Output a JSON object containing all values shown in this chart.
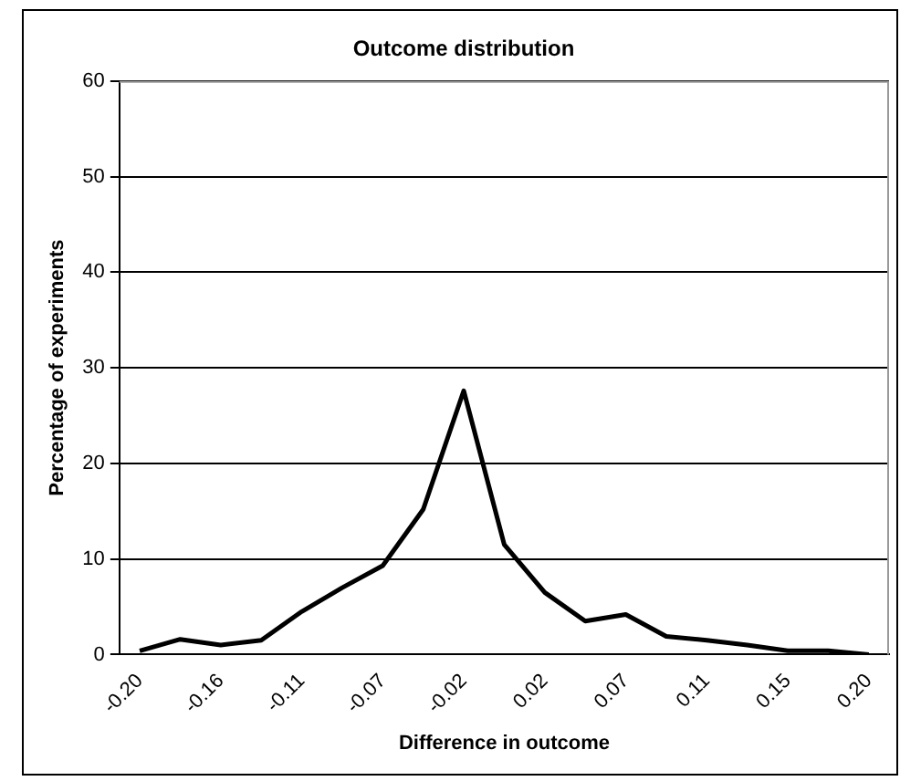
{
  "chart_data": {
    "type": "line",
    "title": "Outcome distribution",
    "xlabel": "Difference in outcome",
    "ylabel": "Percentage of experiments",
    "categories": [
      "-0.20",
      null,
      "-0.16",
      null,
      "-0.11",
      null,
      "-0.07",
      null,
      "-0.02",
      null,
      "0.02",
      null,
      "0.07",
      null,
      "0.11",
      null,
      "0.15",
      null,
      "0.20"
    ],
    "series": [
      {
        "color": "#000000",
        "values": [
          0.4,
          1.6,
          1.0,
          1.5,
          4.5,
          7.0,
          9.3,
          15.2,
          27.6,
          11.5,
          6.5,
          3.5,
          4.2,
          1.9,
          1.5,
          1.0,
          0.4,
          0.4,
          0
        ]
      }
    ],
    "ylim": [
      0,
      60
    ],
    "yticks": [
      0,
      10,
      20,
      30,
      40,
      50,
      60
    ],
    "grid": "y",
    "legend": false,
    "marker": "none",
    "line_style": "solid"
  }
}
